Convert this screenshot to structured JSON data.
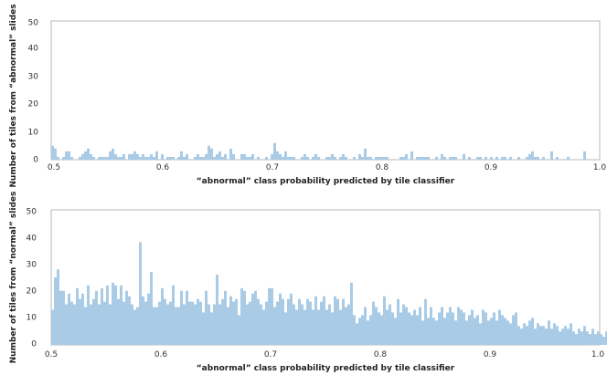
{
  "chart_data": [
    {
      "type": "bar",
      "title": "",
      "xlabel": "“abnormal” class probability predicted by tile classifier",
      "ylabel": "Number of tiles from “abnormal” slides",
      "xlim": [
        0.5,
        1.0
      ],
      "ylim": [
        0,
        50
      ],
      "x_ticks": [
        "0.5",
        "0.6",
        "0.7",
        "0.8",
        "0.9",
        "1.0"
      ],
      "y_ticks": [
        "0",
        "10",
        "20",
        "30",
        "40",
        "50"
      ],
      "grid": false,
      "bar_color": "#a9cbe6",
      "bins": {
        "start": 0.5,
        "width": 0.0025
      },
      "values": [
        5,
        4,
        1,
        0,
        1,
        3,
        3,
        1,
        0,
        0,
        1,
        2,
        3,
        4,
        2,
        1,
        0,
        1,
        1,
        1,
        1,
        3,
        4,
        2,
        1,
        1,
        2,
        0,
        2,
        2,
        3,
        2,
        1,
        2,
        1,
        1,
        2,
        1,
        3,
        0,
        2,
        0,
        1,
        1,
        1,
        0,
        1,
        3,
        1,
        2,
        0,
        0,
        1,
        2,
        1,
        1,
        2,
        5,
        4,
        1,
        2,
        3,
        1,
        2,
        0,
        4,
        2,
        0,
        0,
        2,
        2,
        1,
        1,
        2,
        0,
        1,
        0,
        0,
        1,
        0,
        2,
        6,
        3,
        2,
        1,
        3,
        1,
        1,
        1,
        0,
        0,
        1,
        2,
        1,
        0,
        1,
        2,
        1,
        0,
        0,
        1,
        1,
        2,
        1,
        0,
        1,
        2,
        1,
        0,
        0,
        1,
        0,
        2,
        1,
        4,
        1,
        1,
        0,
        1,
        1,
        1,
        1,
        1,
        0,
        0,
        0,
        0,
        1,
        1,
        2,
        0,
        3,
        0,
        1,
        1,
        1,
        1,
        1,
        0,
        0,
        1,
        0,
        2,
        1,
        0,
        1,
        1,
        1,
        0,
        0,
        2,
        0,
        1,
        0,
        0,
        1,
        1,
        0,
        1,
        0,
        1,
        0,
        1,
        0,
        1,
        1,
        0,
        1,
        0,
        0,
        1,
        0,
        0,
        1,
        2,
        3,
        1,
        1,
        0,
        1,
        0,
        0,
        3,
        0,
        1,
        0,
        0,
        0,
        1,
        0,
        0,
        0,
        0,
        0,
        3,
        0,
        0,
        0,
        0,
        0,
        0,
        0,
        0,
        0,
        1,
        0,
        0,
        0,
        0,
        0,
        0,
        0,
        0,
        1,
        0,
        0,
        0,
        0,
        0,
        0,
        0,
        0,
        0,
        0,
        0,
        0,
        0,
        0,
        0,
        0,
        0,
        0,
        0,
        0,
        0,
        1,
        0,
        0,
        0,
        0,
        0,
        0,
        0,
        1,
        0,
        0,
        0,
        0,
        0,
        0,
        0,
        0,
        0,
        0,
        0,
        0,
        0,
        0,
        0,
        0,
        0,
        0,
        0,
        0,
        0,
        0,
        0,
        0,
        0,
        0,
        0,
        0,
        0,
        0,
        0,
        0,
        0
      ]
    },
    {
      "type": "bar",
      "title": "",
      "xlabel": "“abnormal” class probability predicted by tile classifier",
      "ylabel": "Number of tiles from “normal” slides",
      "xlim": [
        0.5,
        1.0
      ],
      "ylim": [
        0,
        50
      ],
      "x_ticks": [
        "0.5",
        "0.6",
        "0.7",
        "0.8",
        "0.9",
        "1.0"
      ],
      "y_ticks": [
        "0",
        "10",
        "20",
        "30",
        "40",
        "50"
      ],
      "grid": false,
      "bar_color": "#a9cbe6",
      "bins": {
        "start": 0.5,
        "width": 0.0025
      },
      "values": [
        13,
        25,
        28,
        20,
        20,
        15,
        19,
        16,
        15,
        21,
        17,
        19,
        14,
        22,
        15,
        17,
        20,
        15,
        21,
        16,
        22,
        15,
        23,
        22,
        17,
        22,
        16,
        20,
        18,
        15,
        13,
        14,
        38,
        18,
        16,
        19,
        27,
        14,
        14,
        16,
        21,
        17,
        15,
        16,
        22,
        14,
        14,
        20,
        15,
        20,
        16,
        16,
        15,
        17,
        16,
        12,
        20,
        15,
        12,
        15,
        26,
        15,
        17,
        20,
        14,
        18,
        16,
        17,
        11,
        21,
        20,
        15,
        16,
        19,
        20,
        17,
        15,
        13,
        16,
        21,
        21,
        14,
        16,
        19,
        17,
        12,
        17,
        19,
        15,
        13,
        17,
        15,
        13,
        17,
        16,
        13,
        18,
        13,
        16,
        18,
        13,
        15,
        12,
        18,
        17,
        13,
        17,
        14,
        15,
        23,
        11,
        8,
        10,
        11,
        14,
        9,
        11,
        16,
        14,
        12,
        11,
        18,
        13,
        15,
        12,
        10,
        17,
        12,
        15,
        14,
        12,
        11,
        13,
        11,
        14,
        9,
        17,
        10,
        14,
        10,
        9,
        12,
        14,
        10,
        12,
        14,
        12,
        9,
        14,
        13,
        12,
        9,
        11,
        13,
        10,
        11,
        8,
        13,
        12,
        9,
        10,
        12,
        9,
        13,
        11,
        10,
        9,
        8,
        11,
        12,
        7,
        6,
        8,
        7,
        9,
        10,
        6,
        8,
        7,
        7,
        6,
        9,
        6,
        8,
        7,
        5,
        6,
        7,
        6,
        8,
        5,
        4,
        6,
        5,
        7,
        5,
        4,
        6,
        4,
        5,
        4,
        3,
        5,
        3,
        4,
        3,
        2,
        4,
        3,
        2,
        3,
        2,
        1,
        2,
        1,
        1,
        0,
        1,
        2,
        1,
        0,
        1,
        0,
        0,
        0,
        0,
        0,
        0,
        0,
        0,
        0,
        0,
        0,
        0,
        0,
        0,
        0,
        0,
        0,
        0,
        0,
        0,
        0,
        0,
        0,
        0,
        0,
        0,
        0,
        0,
        0,
        0,
        0,
        0,
        0,
        0,
        0,
        0,
        0,
        0,
        0,
        0,
        0,
        0,
        0,
        0,
        0,
        0,
        0,
        0,
        0,
        0,
        0,
        0,
        0,
        0,
        0,
        0,
        0,
        0,
        0,
        0,
        0,
        0,
        0,
        0,
        0,
        0,
        0,
        0,
        0,
        0,
        0,
        0,
        0,
        0,
        0,
        0,
        0,
        0,
        0,
        0,
        0,
        0,
        0,
        0,
        0,
        0,
        0,
        0,
        0,
        0,
        0,
        0,
        0,
        0,
        0,
        0,
        0,
        0,
        0,
        0,
        0,
        0,
        0,
        0,
        0,
        0,
        0,
        0,
        0,
        0,
        0,
        0,
        0,
        0,
        0,
        0,
        0
      ]
    }
  ]
}
